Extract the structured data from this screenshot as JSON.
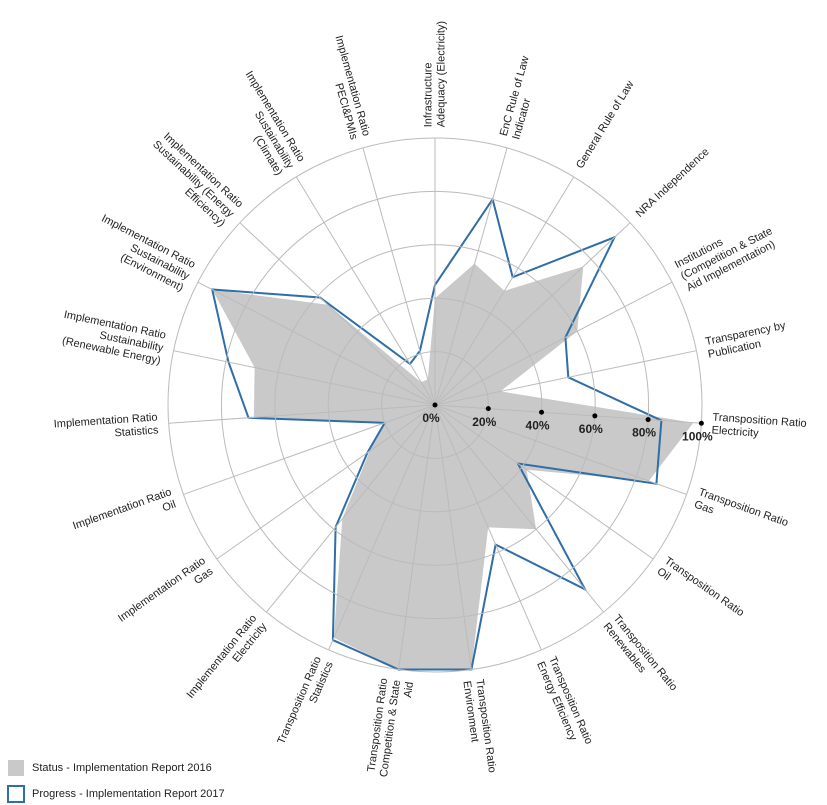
{
  "chart_data": {
    "type": "radar",
    "categories": [
      "Infrastructure Adequacy (Electricity)",
      "EnC Rule of Law Indicator",
      "General Rule of Law",
      "NRA Independence",
      "Institutions (Competition & State Aid Implementation)",
      "Transparency by Publication",
      "Transposition Ratio Electricity",
      "Transposition Ratio Gas",
      "Transposition Ratio Oil",
      "Transposition Ratio Renewables",
      "Transposition Ratio Energy Efficiency",
      "Transposition Ratio Environment",
      "Transposition Ratio Competition & State Aid",
      "Transposition Ratio Statistics",
      "Implementation Ratio Electricity",
      "Implementation Ratio Gas",
      "Implementation Ratio Oil",
      "Implementation Ratio Statistics",
      "Implementation Ratio Sustainability (Renewable Energy)",
      "Implementation Ratio Sustainability (Environment)",
      "Implementation Ratio Sustainability (Energy Efficiency)",
      "Implementation Ratio Sustainability (Climate)",
      "Implementation Ratio PECI&PMIs"
    ],
    "series": [
      {
        "name": "Status - Implementation Report 2016",
        "color": "#c9c9c9",
        "values": [
          40,
          55,
          50,
          76,
          60,
          25,
          97,
          85,
          42,
          60,
          50,
          100,
          100,
          95,
          55,
          30,
          20,
          68,
          69,
          94,
          55,
          10,
          10
        ]
      },
      {
        "name": "Progress - Implementation Report 2017",
        "color": "#2f6ea6",
        "values": [
          45,
          80,
          56,
          92,
          55,
          51,
          85,
          88,
          38,
          89,
          57,
          100,
          100,
          96,
          59,
          31,
          20,
          70,
          79,
          94,
          59,
          18,
          21
        ]
      }
    ],
    "ylim": [
      0,
      100
    ],
    "yticks": [
      {
        "value": 0,
        "label": "0%"
      },
      {
        "value": 20,
        "label": "20%"
      },
      {
        "value": 40,
        "label": "40%"
      },
      {
        "value": 60,
        "label": "60%"
      },
      {
        "value": 80,
        "label": "80%"
      },
      {
        "value": 100,
        "label": "100%"
      }
    ],
    "grid": true,
    "legend": "lower left"
  }
}
